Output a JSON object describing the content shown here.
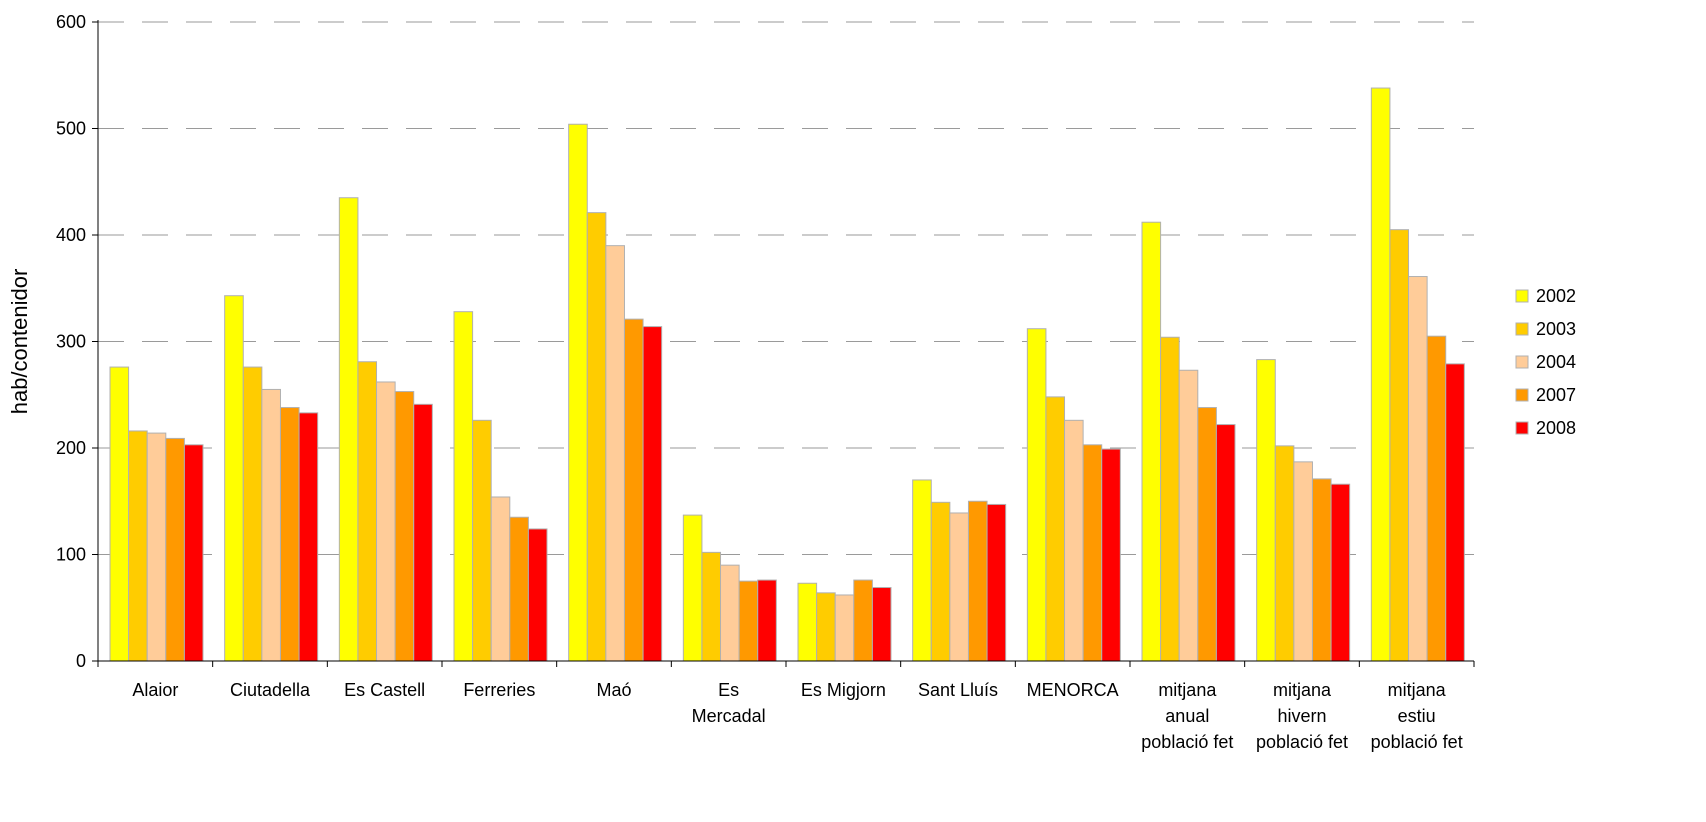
{
  "chart_data": {
    "type": "bar",
    "title": "",
    "xlabel": "",
    "ylabel": "hab/contenidor",
    "ylim": [
      0,
      600
    ],
    "yticks": [
      0,
      100,
      200,
      300,
      400,
      500,
      600
    ],
    "grid": true,
    "legend_position": "right",
    "categories": [
      [
        "Alaior"
      ],
      [
        "Ciutadella"
      ],
      [
        "Es Castell"
      ],
      [
        "Ferreries"
      ],
      [
        "Maó"
      ],
      [
        "Es",
        "Mercadal"
      ],
      [
        "Es Migjorn"
      ],
      [
        "Sant Lluís"
      ],
      [
        "MENORCA"
      ],
      [
        "mitjana",
        "anual",
        "població fet"
      ],
      [
        "mitjana",
        "hivern",
        "població fet"
      ],
      [
        "mitjana",
        "estiu",
        "població fet"
      ]
    ],
    "series": [
      {
        "name": "2002",
        "color": "#FFFF00",
        "values": [
          276,
          343,
          435,
          328,
          504,
          137,
          73,
          170,
          312,
          412,
          283,
          538
        ]
      },
      {
        "name": "2003",
        "color": "#FFCC00",
        "values": [
          216,
          276,
          281,
          226,
          421,
          102,
          64,
          149,
          248,
          304,
          202,
          405
        ]
      },
      {
        "name": "2004",
        "color": "#FFCC99",
        "values": [
          214,
          255,
          262,
          154,
          390,
          90,
          62,
          139,
          226,
          273,
          187,
          361
        ]
      },
      {
        "name": "2007",
        "color": "#FF9900",
        "values": [
          209,
          238,
          253,
          135,
          321,
          75,
          76,
          150,
          203,
          238,
          171,
          305
        ]
      },
      {
        "name": "2008",
        "color": "#FF0000",
        "values": [
          203,
          233,
          241,
          124,
          314,
          76,
          69,
          147,
          199,
          222,
          166,
          279
        ]
      }
    ]
  }
}
